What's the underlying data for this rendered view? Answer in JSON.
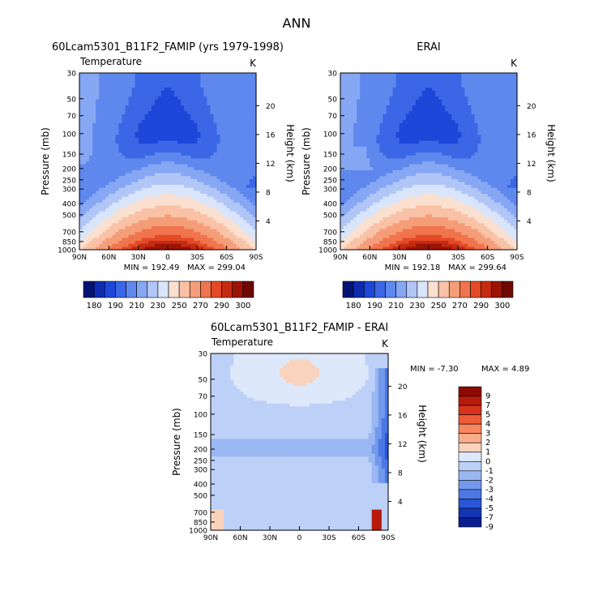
{
  "figure": {
    "title": "ANN",
    "height_axis_label": "Height (km)",
    "pressure_axis_label": "Pressure (mb)"
  },
  "chart_data": [
    {
      "type": "heatmap",
      "id": "model",
      "title": "60Lcam5301_B11F2_FAMIP (yrs 1979-1998)",
      "subtitle_left": "Temperature",
      "units": "K",
      "xlabel": "",
      "ylabel": "Pressure (mb)",
      "y2label": "Height (km)",
      "x_ticks": [
        "90N",
        "60N",
        "30N",
        "0",
        "30S",
        "60S",
        "90S"
      ],
      "y_ticks": [
        30,
        50,
        70,
        100,
        150,
        200,
        250,
        300,
        400,
        500,
        700,
        850,
        1000
      ],
      "y2_ticks": [
        4,
        8,
        12,
        16,
        20
      ],
      "ylim": [
        1000,
        30
      ],
      "min_text": "MIN = 192.49",
      "max_text": "MAX = 299.04",
      "min": 192.49,
      "max": 299.04
    },
    {
      "type": "heatmap",
      "id": "obs",
      "title": "ERAI",
      "subtitle_left": "",
      "units": "K",
      "xlabel": "",
      "ylabel": "Pressure (mb)",
      "y2label": "Height (km)",
      "x_ticks": [
        "90N",
        "60N",
        "30N",
        "0",
        "30S",
        "60S",
        "90S"
      ],
      "y_ticks": [
        30,
        50,
        70,
        100,
        150,
        200,
        250,
        300,
        400,
        500,
        700,
        850,
        1000
      ],
      "y2_ticks": [
        4,
        8,
        12,
        16,
        20
      ],
      "ylim": [
        1000,
        30
      ],
      "min_text": "MIN = 192.18",
      "max_text": "MAX = 299.64",
      "min": 192.18,
      "max": 299.64
    },
    {
      "type": "heatmap",
      "id": "diff",
      "title": "60Lcam5301_B11F2_FAMIP - ERAI",
      "subtitle_left": "Temperature",
      "units": "K",
      "xlabel": "",
      "ylabel": "Pressure (mb)",
      "y2label": "Height (km)",
      "x_ticks": [
        "90N",
        "60N",
        "30N",
        "0",
        "30S",
        "60S",
        "90S"
      ],
      "y_ticks": [
        30,
        50,
        70,
        100,
        150,
        200,
        250,
        300,
        400,
        500,
        700,
        850,
        1000
      ],
      "y2_ticks": [
        4,
        8,
        12,
        16,
        20
      ],
      "ylim": [
        1000,
        30
      ],
      "min_text": "MIN = -7.30",
      "max_text": "MAX = 4.89",
      "min": -7.3,
      "max": 4.89
    }
  ],
  "colorbars": {
    "absolute": {
      "orientation": "horizontal",
      "colors": [
        "#051473",
        "#0f2bb0",
        "#1c47d8",
        "#3a67e6",
        "#5f88ee",
        "#86a7f3",
        "#b1c6f7",
        "#d9e5fb",
        "#fbe0cf",
        "#f9c2a6",
        "#f59d79",
        "#f0744d",
        "#e44a26",
        "#c52b12",
        "#9c1406",
        "#6e0802"
      ],
      "labels": [
        "180",
        "190",
        "210",
        "230",
        "250",
        "270",
        "290",
        "300"
      ]
    },
    "difference": {
      "orientation": "vertical",
      "colors": [
        "#8d0a02",
        "#b81a0c",
        "#d8321c",
        "#ef5b36",
        "#f7875e",
        "#f8ad8c",
        "#fad3bd",
        "#dde8fa",
        "#bdd0f7",
        "#9ab7f2",
        "#7399ec",
        "#4b78e4",
        "#2a56d6",
        "#1536b3",
        "#0b1e8e"
      ],
      "labels": [
        "9",
        "7",
        "5",
        "4",
        "3",
        "2",
        "1",
        "0",
        "-1",
        "-2",
        "-3",
        "-4",
        "-5",
        "-7",
        "-9"
      ]
    }
  }
}
